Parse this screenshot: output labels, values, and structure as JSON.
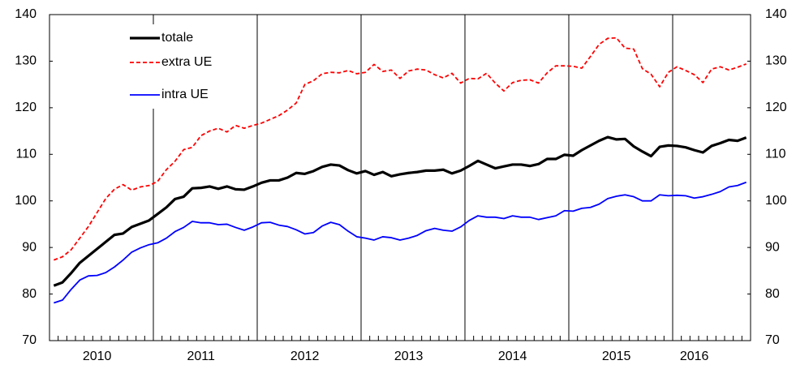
{
  "chart_data": {
    "type": "line",
    "categories": [
      null,
      null,
      null,
      null,
      null,
      "2010",
      null,
      null,
      null,
      null,
      null,
      null,
      null,
      null,
      null,
      null,
      null,
      "2011",
      null,
      null,
      null,
      null,
      null,
      null,
      null,
      null,
      null,
      null,
      null,
      "2012",
      null,
      null,
      null,
      null,
      null,
      null,
      null,
      null,
      null,
      null,
      null,
      "2013",
      null,
      null,
      null,
      null,
      null,
      null,
      null,
      null,
      null,
      null,
      null,
      "2014",
      null,
      null,
      null,
      null,
      null,
      null,
      null,
      null,
      null,
      null,
      null,
      "2015",
      null,
      null,
      null,
      null,
      null,
      null,
      null,
      null,
      "2016",
      null,
      null,
      null,
      null,
      null,
      null
    ],
    "series": [
      {
        "name": "totale",
        "color": "#000000",
        "style": "solid",
        "values": [
          81.8,
          82.5,
          84.5,
          86.7,
          88.2,
          89.7,
          91.2,
          92.7,
          93.0,
          94.4,
          95.1,
          95.8,
          97.2,
          98.6,
          100.4,
          100.9,
          102.7,
          102.8,
          103.1,
          102.6,
          103.1,
          102.5,
          102.4,
          103.1,
          103.9,
          104.4,
          104.4,
          105.0,
          106.0,
          105.8,
          106.4,
          107.3,
          107.8,
          107.6,
          106.6,
          105.9,
          106.4,
          105.6,
          106.2,
          105.3,
          105.7,
          106.0,
          106.2,
          106.5,
          106.5,
          106.7,
          105.9,
          106.5,
          107.5,
          108.6,
          107.8,
          107.0,
          107.4,
          107.8,
          107.8,
          107.5,
          107.9,
          109.0,
          109.0,
          109.9,
          109.7,
          110.9,
          111.9,
          112.9,
          113.7,
          113.2,
          113.3,
          111.7,
          110.6,
          109.6,
          111.6,
          111.9,
          111.8,
          111.5,
          110.9,
          110.4,
          111.8,
          112.4,
          113.1,
          112.9,
          113.6
        ]
      },
      {
        "name": "extra UE",
        "color": "#ff0000",
        "style": "dashed",
        "values": [
          87.3,
          88.0,
          89.5,
          92.0,
          94.5,
          97.5,
          100.5,
          102.5,
          103.5,
          102.3,
          103.0,
          103.3,
          104.2,
          106.7,
          108.5,
          111.0,
          111.5,
          114.0,
          115.0,
          115.6,
          114.8,
          116.2,
          115.6,
          116.2,
          116.7,
          117.5,
          118.3,
          119.5,
          121.0,
          125.0,
          125.8,
          127.3,
          127.6,
          127.5,
          128.0,
          127.3,
          127.6,
          129.3,
          127.8,
          128.1,
          126.3,
          127.9,
          128.3,
          128.1,
          127.1,
          126.4,
          127.4,
          125.3,
          126.3,
          126.2,
          127.4,
          125.3,
          123.6,
          125.4,
          125.9,
          126.0,
          125.3,
          127.5,
          129.0,
          129.0,
          128.9,
          128.5,
          131.0,
          133.6,
          134.9,
          135.0,
          132.8,
          132.6,
          128.4,
          127.2,
          124.5,
          127.6,
          128.8,
          128.0,
          127.1,
          125.4,
          128.3,
          128.8,
          128.1,
          128.7,
          129.4
        ]
      },
      {
        "name": "intra UE",
        "color": "#0000ff",
        "style": "solid",
        "values": [
          78.1,
          78.7,
          81.0,
          83.0,
          83.9,
          84.0,
          84.6,
          85.8,
          87.3,
          89.0,
          89.9,
          90.6,
          91.0,
          92.0,
          93.4,
          94.3,
          95.6,
          95.3,
          95.3,
          94.9,
          95.0,
          94.3,
          93.7,
          94.4,
          95.3,
          95.4,
          94.8,
          94.5,
          93.8,
          92.9,
          93.2,
          94.6,
          95.4,
          94.9,
          93.5,
          92.3,
          92.0,
          91.6,
          92.3,
          92.1,
          91.6,
          92.0,
          92.6,
          93.6,
          94.1,
          93.7,
          93.5,
          94.4,
          95.8,
          96.8,
          96.5,
          96.5,
          96.2,
          96.8,
          96.5,
          96.5,
          96.0,
          96.4,
          96.8,
          97.9,
          97.8,
          98.4,
          98.6,
          99.3,
          100.5,
          101.0,
          101.3,
          100.9,
          100.0,
          100.0,
          101.3,
          101.1,
          101.2,
          101.1,
          100.6,
          100.9,
          101.4,
          102.0,
          103.0,
          103.3,
          104.0
        ]
      }
    ],
    "ylim": [
      70,
      140
    ],
    "yticks": [
      70,
      80,
      90,
      100,
      110,
      120,
      130,
      140
    ],
    "grid": false
  }
}
